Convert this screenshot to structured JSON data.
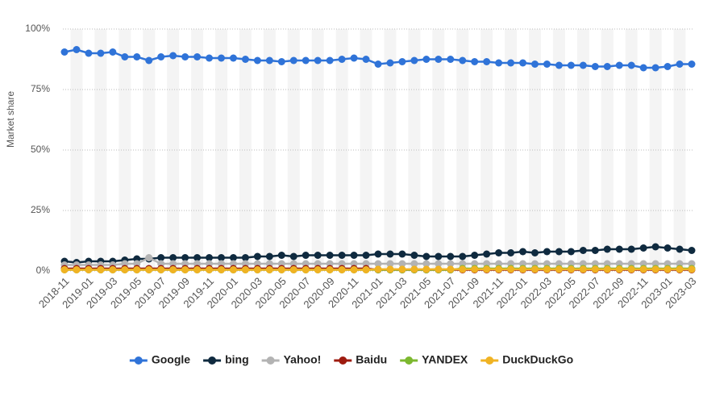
{
  "chart_data": {
    "type": "line",
    "y_label": "Market share",
    "categories": [
      "2018-11",
      null,
      "2019-01",
      null,
      "2019-03",
      null,
      "2019-05",
      null,
      "2019-07",
      null,
      "2019-09",
      null,
      "2019-11",
      null,
      "2020-01",
      null,
      "2020-03",
      null,
      "2020-05",
      null,
      "2020-07",
      null,
      "2020-09",
      null,
      "2020-11",
      null,
      "2021-01",
      null,
      "2021-03",
      null,
      "2021-05",
      null,
      "2021-07",
      null,
      "2021-09",
      null,
      "2021-11",
      null,
      "2022-01",
      null,
      "2022-03",
      null,
      "2022-05",
      null,
      "2022-07",
      null,
      "2022-09",
      null,
      "2022-11",
      null,
      "2023-01",
      null,
      "2023-03"
    ],
    "ylim": [
      0,
      100
    ],
    "yticks": [
      {
        "value": 0,
        "label": "0%"
      },
      {
        "value": 25,
        "label": "25%"
      },
      {
        "value": 50,
        "label": "50%"
      },
      {
        "value": 75,
        "label": "75%"
      },
      {
        "value": 100,
        "label": "100%"
      }
    ],
    "grid": true,
    "legend": "bottom",
    "series": [
      {
        "name": "Google",
        "color": "#2f73d8",
        "values": [
          90.5,
          91.5,
          90,
          90,
          90.5,
          88.5,
          88.5,
          87,
          88.5,
          89,
          88.5,
          88.5,
          88,
          88,
          88,
          87.5,
          87,
          87,
          86.5,
          87,
          87,
          87,
          87,
          87.5,
          88,
          87.5,
          85.5,
          86,
          86.5,
          87,
          87.5,
          87.5,
          87.5,
          87,
          86.5,
          86.5,
          86,
          86,
          86,
          85.5,
          85.5,
          85,
          85,
          85,
          84.5,
          84.5,
          85,
          85,
          84,
          84,
          84.5,
          85.5,
          85.5
        ]
      },
      {
        "name": "bing",
        "color": "#0f2a3f",
        "values": [
          4,
          3.5,
          4,
          4,
          4,
          4.5,
          5,
          5,
          5.5,
          5.5,
          5.5,
          5.5,
          5.5,
          5.5,
          5.5,
          5.5,
          6,
          6,
          6.5,
          6,
          6.5,
          6.5,
          6.5,
          6.5,
          6.5,
          6.5,
          7,
          7,
          7,
          6.5,
          6,
          6,
          6,
          6,
          6.5,
          7,
          7.5,
          7.5,
          8,
          7.5,
          8,
          8,
          8,
          8.5,
          8.5,
          9,
          9,
          9,
          9.5,
          10,
          9.5,
          9,
          8.5
        ]
      },
      {
        "name": "Yahoo!",
        "color": "#b3b3b3",
        "values": [
          2.5,
          2.5,
          2.5,
          2.5,
          2.5,
          3,
          3,
          5.5,
          3,
          3,
          3,
          3,
          3,
          3,
          3,
          3,
          3,
          3,
          3,
          3,
          3,
          3,
          3,
          3,
          3,
          3,
          3,
          3,
          3,
          3,
          3,
          3,
          3,
          3,
          3,
          3,
          3,
          3,
          3,
          3,
          3,
          3,
          3,
          3,
          3,
          3,
          3,
          3,
          3,
          3,
          3,
          3,
          3
        ]
      },
      {
        "name": "Baidu",
        "color": "#9e1b0f",
        "values": [
          1,
          1,
          1,
          1,
          1,
          1,
          1,
          1,
          1,
          1,
          1,
          1,
          1,
          1,
          1,
          1,
          1,
          1,
          1,
          1,
          1,
          1,
          1,
          1,
          1,
          1,
          0.5,
          0.5,
          0.5,
          0.5,
          0.5,
          0.5,
          0.5,
          0.5,
          0.5,
          0.5,
          0.5,
          0.5,
          0.5,
          0.5,
          0.5,
          0.5,
          0.5,
          0.5,
          0.5,
          0.5,
          0.5,
          0.5,
          0.5,
          0.5,
          0.5,
          0.5,
          0.5
        ]
      },
      {
        "name": "YANDEX",
        "color": "#7cb82f",
        "values": [
          0.5,
          0.5,
          0.5,
          0.5,
          0.5,
          0.5,
          0.5,
          0.5,
          0.5,
          0.5,
          0.5,
          0.5,
          0.5,
          0.5,
          0.5,
          0.5,
          0.5,
          0.5,
          0.5,
          0.5,
          0.5,
          0.5,
          0.5,
          0.5,
          0.5,
          0.5,
          0.5,
          0.5,
          0.5,
          0.5,
          0.5,
          0.5,
          0.5,
          1,
          1,
          1,
          1,
          1,
          1,
          1,
          1,
          1,
          1,
          1,
          1,
          1,
          1,
          1,
          1,
          1,
          1,
          1,
          1
        ]
      },
      {
        "name": "DuckDuckGo",
        "color": "#f0b323",
        "values": [
          0.5,
          0.5,
          0.5,
          0.5,
          0.5,
          0.5,
          0.5,
          0.5,
          0.5,
          0.5,
          0.5,
          0.5,
          0.5,
          0.5,
          0.5,
          0.5,
          0.5,
          0.5,
          0.5,
          0.5,
          0.5,
          0.5,
          0.5,
          0.5,
          0.5,
          0.5,
          0.7,
          0.7,
          0.7,
          0.7,
          0.7,
          0.7,
          0.7,
          0.7,
          0.7,
          0.7,
          0.7,
          0.7,
          0.7,
          0.7,
          0.7,
          0.7,
          0.7,
          0.7,
          0.7,
          0.7,
          0.7,
          0.7,
          0.7,
          0.7,
          0.7,
          0.7,
          0.7
        ]
      }
    ]
  }
}
